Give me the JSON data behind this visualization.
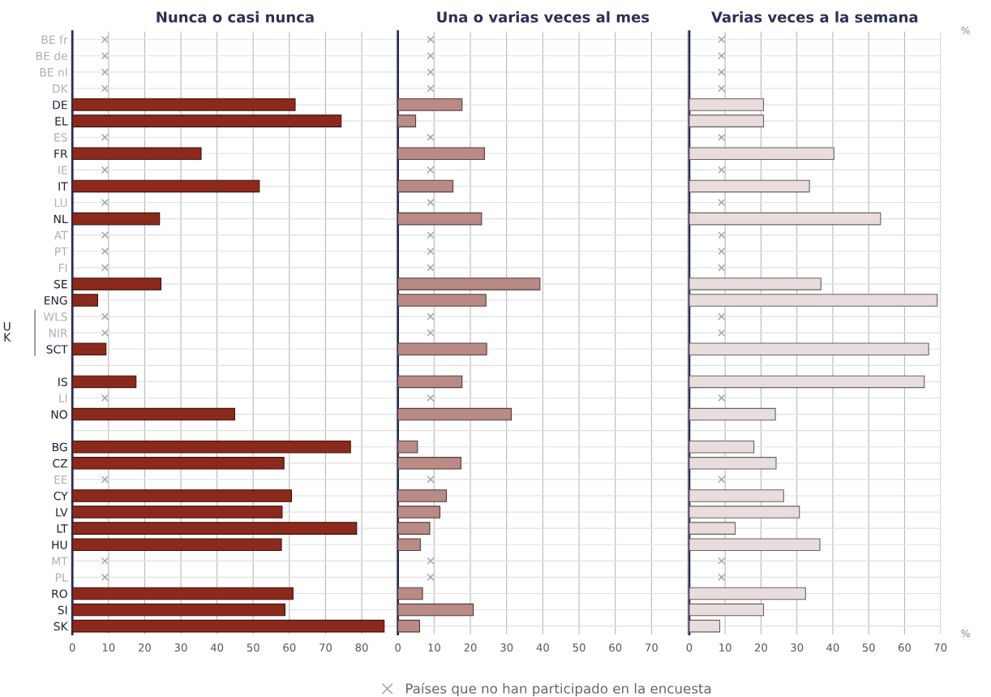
{
  "chart_data": [
    {
      "type": "bar",
      "orientation": "horizontal",
      "title": "Nunca o casi nunca",
      "categories": [
        "BE fr",
        "BE de",
        "BE nl",
        "DK",
        "DE",
        "EL",
        "ES",
        "FR",
        "IE",
        "IT",
        "LU",
        "NL",
        "AT",
        "PT",
        "FI",
        "SE",
        "ENG",
        "WLS",
        "NIR",
        "SCT",
        null,
        "IS",
        "LI",
        "NO",
        null,
        "BG",
        "CZ",
        "EE",
        "CY",
        "LV",
        "LT",
        "HU",
        "MT",
        "PL",
        "RO",
        "SI",
        "SK"
      ],
      "series": [
        {
          "color": "#8b2a1c",
          "values": [
            null,
            null,
            null,
            null,
            61.6,
            74.3,
            null,
            35.6,
            null,
            51.7,
            null,
            24.1,
            null,
            null,
            null,
            24.5,
            7.0,
            null,
            null,
            9.3,
            null,
            17.6,
            null,
            44.9,
            null,
            76.9,
            58.5,
            null,
            60.6,
            58.0,
            78.6,
            57.8,
            null,
            null,
            61.0,
            58.8,
            86.2
          ]
        },
        {
          "type": "scatter",
          "color": "#a0a0a0",
          "values": [
            9,
            9,
            9,
            9,
            null,
            null,
            9,
            null,
            9,
            null,
            9,
            null,
            9,
            9,
            9,
            null,
            null,
            9,
            9,
            null,
            null,
            null,
            9,
            null,
            null,
            null,
            null,
            9,
            null,
            null,
            null,
            null,
            9,
            9,
            null,
            null,
            null
          ]
        }
      ],
      "xlim": [
        0,
        90
      ],
      "xticks": [
        0,
        10,
        20,
        30,
        40,
        50,
        60,
        70,
        80,
        {
          "value": 90,
          "label": null
        }
      ],
      "grid": true,
      "marker": "cross",
      "annotations": [
        "U\nK"
      ]
    },
    {
      "type": "bar",
      "orientation": "horizontal",
      "title": "Una o varias veces al mes",
      "series": [
        {
          "color": "#b98a86",
          "values": [
            null,
            null,
            null,
            null,
            17.7,
            4.9,
            null,
            23.9,
            null,
            15.2,
            null,
            23.1,
            null,
            null,
            null,
            39.2,
            24.3,
            null,
            null,
            24.5,
            null,
            17.7,
            null,
            31.3,
            null,
            5.4,
            17.4,
            null,
            13.4,
            11.6,
            8.8,
            6.2,
            null,
            null,
            6.8,
            20.8,
            6.0
          ]
        },
        {
          "type": "scatter",
          "name": "Países que no han participado en la encuesta",
          "color": "#a0a0a0",
          "values": [
            9,
            9,
            9,
            9,
            null,
            null,
            9,
            null,
            9,
            null,
            9,
            null,
            9,
            9,
            9,
            null,
            null,
            9,
            9,
            null,
            null,
            null,
            9,
            null,
            null,
            null,
            null,
            9,
            null,
            null,
            null,
            null,
            9,
            9,
            null,
            null,
            null
          ]
        }
      ],
      "xlim": [
        0,
        80
      ],
      "xticks": [
        0,
        10,
        20,
        30,
        40,
        50,
        60,
        70,
        {
          "value": 80,
          "label": null
        }
      ],
      "grid": true,
      "marker": "cross",
      "tick_labels": "x",
      "legend": "bottom"
    },
    {
      "type": "bar",
      "orientation": "horizontal",
      "title": "Varias veces a la semana",
      "series": [
        {
          "color": "#e8dcdc",
          "values": [
            null,
            null,
            null,
            null,
            20.7,
            20.7,
            null,
            40.3,
            null,
            33.5,
            null,
            53.3,
            null,
            null,
            null,
            36.7,
            69.1,
            null,
            null,
            66.7,
            null,
            65.5,
            null,
            24.0,
            null,
            18.0,
            24.2,
            null,
            26.3,
            30.7,
            12.8,
            36.4,
            null,
            null,
            32.4,
            20.7,
            8.5
          ]
        },
        {
          "type": "scatter",
          "color": "#a0a0a0",
          "values": [
            9,
            9,
            9,
            9,
            null,
            null,
            9,
            null,
            9,
            null,
            9,
            null,
            9,
            9,
            9,
            null,
            null,
            9,
            9,
            null,
            null,
            null,
            9,
            null,
            null,
            null,
            null,
            9,
            null,
            null,
            null,
            null,
            9,
            9,
            null,
            null,
            null
          ]
        }
      ],
      "xlim": [
        0,
        70
      ],
      "xticks": [
        0,
        10,
        20,
        30,
        40,
        50,
        60,
        70
      ],
      "grid": true,
      "marker": "cross",
      "tick_labels": "x",
      "annotations": [
        "%",
        "%"
      ]
    }
  ]
}
